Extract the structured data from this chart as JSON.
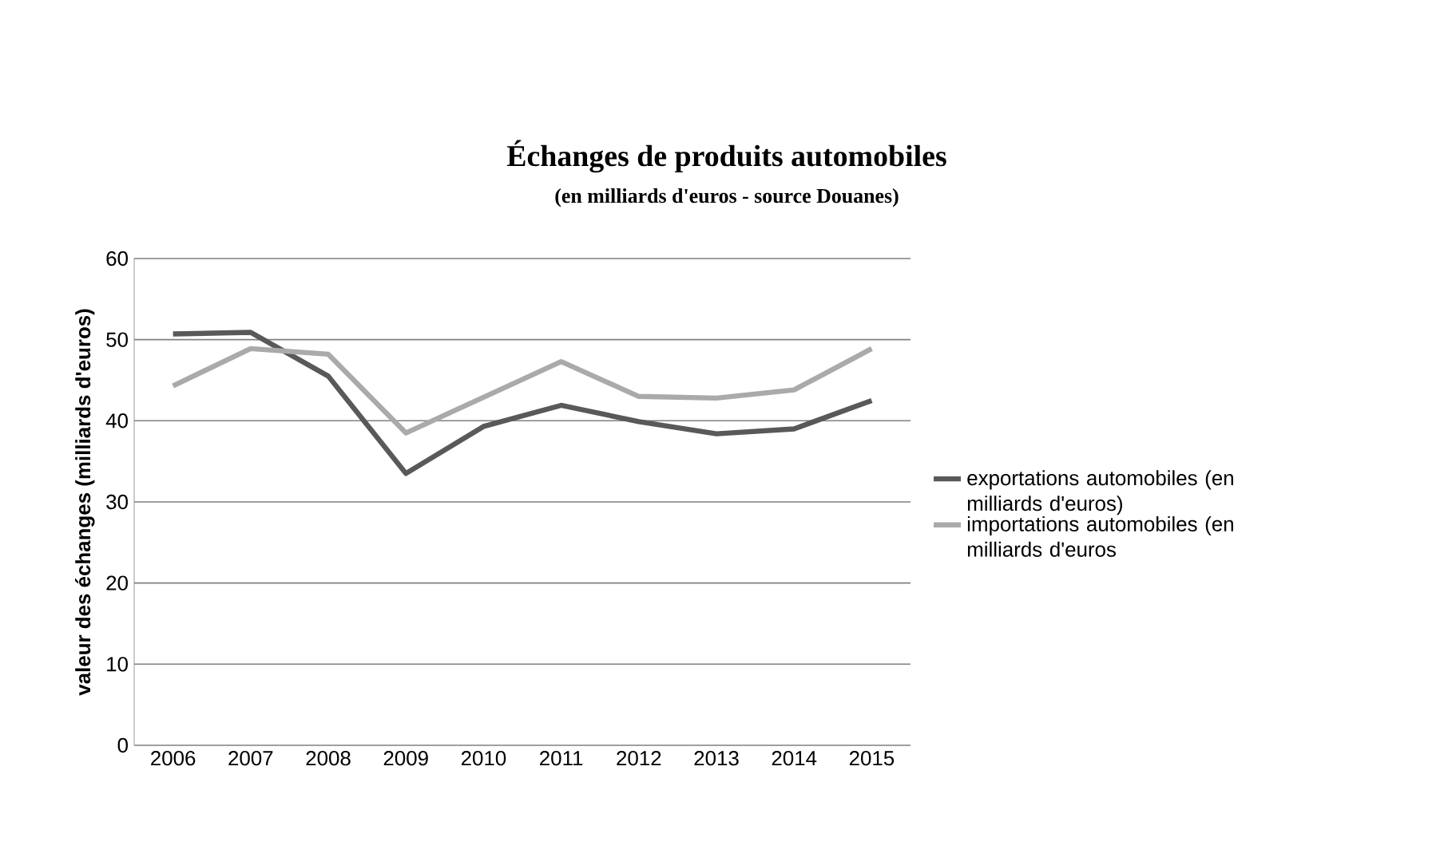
{
  "chart_data": {
    "type": "line",
    "title": "Échanges de produits automobiles",
    "subtitle": "(en milliards d'euros - source Douanes)",
    "ylabel": "valeur des échanges (milliards d'euros)",
    "categories": [
      "2006",
      "2007",
      "2008",
      "2009",
      "2010",
      "2011",
      "2012",
      "2013",
      "2014",
      "2015"
    ],
    "series": [
      {
        "name": "exportations automobiles (en milliards d'euros)",
        "color": "#595959",
        "values": [
          50.7,
          50.9,
          45.5,
          33.5,
          39.3,
          41.9,
          39.9,
          38.4,
          39.0,
          42.5
        ]
      },
      {
        "name": "importations automobiles (en milliards d'euros",
        "color": "#aaaaaa",
        "values": [
          44.3,
          48.9,
          48.2,
          38.5,
          42.9,
          47.3,
          43.0,
          42.8,
          43.8,
          48.9
        ]
      }
    ],
    "ylim": [
      0,
      60
    ],
    "yticks": [
      0,
      10,
      20,
      30,
      40,
      50,
      60
    ],
    "grid": "y",
    "legend": "right",
    "marker": "none",
    "line_style": "solid"
  }
}
